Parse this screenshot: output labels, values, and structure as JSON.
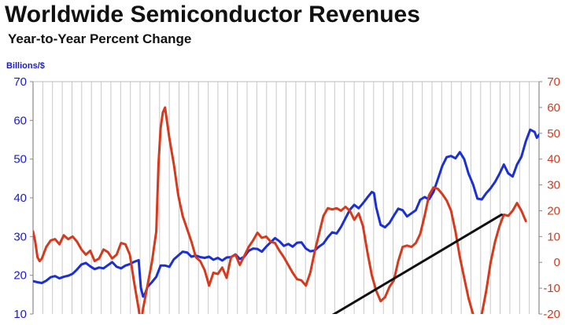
{
  "chart_data": {
    "type": "line",
    "title": "Worldwide Semiconductor Revenues",
    "subtitle": "Year-to-Year Percent Change",
    "ylabel": "Billions/$",
    "ylim": [
      10,
      70
    ],
    "y2lim": [
      -20,
      70
    ],
    "yticks": [
      "70",
      "60",
      "50",
      "40",
      "30",
      "20",
      "10"
    ],
    "y2ticks": [
      "70",
      "60",
      "50",
      "40",
      "30",
      "20",
      "10",
      "0",
      "-10",
      "-20"
    ],
    "grid": true,
    "series": [
      {
        "axis": "left",
        "color": "#1a2fd6",
        "values": [
          [
            0,
            18.5
          ],
          [
            2,
            18.2
          ],
          [
            4,
            18.0
          ],
          [
            6,
            18.6
          ],
          [
            8,
            19.5
          ],
          [
            10,
            19.8
          ],
          [
            12,
            19.2
          ],
          [
            14,
            19.6
          ],
          [
            16,
            19.9
          ],
          [
            18,
            20.4
          ],
          [
            20,
            21.5
          ],
          [
            22,
            22.8
          ],
          [
            24,
            23.2
          ],
          [
            26,
            22.3
          ],
          [
            28,
            21.6
          ],
          [
            30,
            22.0
          ],
          [
            32,
            21.8
          ],
          [
            34,
            22.6
          ],
          [
            36,
            23.4
          ],
          [
            38,
            22.2
          ],
          [
            40,
            21.8
          ],
          [
            42,
            22.5
          ],
          [
            44,
            22.9
          ],
          [
            46,
            23.5
          ],
          [
            48,
            23.9
          ],
          [
            49,
            16.8
          ],
          [
            50,
            14.5
          ],
          [
            51,
            15.4
          ],
          [
            52,
            17.0
          ],
          [
            54,
            18.2
          ],
          [
            56,
            19.6
          ],
          [
            58,
            22.5
          ],
          [
            60,
            22.5
          ],
          [
            62,
            22.2
          ],
          [
            64,
            24.1
          ],
          [
            66,
            25.1
          ],
          [
            68,
            26.1
          ],
          [
            70,
            25.9
          ],
          [
            72,
            24.8
          ],
          [
            74,
            25.1
          ],
          [
            76,
            24.7
          ],
          [
            78,
            24.5
          ],
          [
            80,
            24.8
          ],
          [
            82,
            24.0
          ],
          [
            84,
            24.5
          ],
          [
            86,
            23.8
          ],
          [
            88,
            24.6
          ],
          [
            90,
            24.7
          ],
          [
            92,
            25.4
          ],
          [
            94,
            24.2
          ],
          [
            96,
            24.8
          ],
          [
            98,
            26.3
          ],
          [
            100,
            26.9
          ],
          [
            102,
            26.8
          ],
          [
            104,
            26.1
          ],
          [
            106,
            27.4
          ],
          [
            108,
            28.5
          ],
          [
            110,
            29.6
          ],
          [
            112,
            28.8
          ],
          [
            114,
            27.6
          ],
          [
            116,
            28.1
          ],
          [
            118,
            27.4
          ],
          [
            120,
            28.4
          ],
          [
            122,
            28.5
          ],
          [
            124,
            26.9
          ],
          [
            126,
            26.2
          ],
          [
            128,
            26.4
          ],
          [
            130,
            27.4
          ],
          [
            132,
            28.2
          ],
          [
            134,
            29.8
          ],
          [
            136,
            31.1
          ],
          [
            138,
            30.8
          ],
          [
            140,
            32.5
          ],
          [
            142,
            34.7
          ],
          [
            144,
            36.9
          ],
          [
            146,
            38.2
          ],
          [
            148,
            37.3
          ],
          [
            150,
            38.6
          ],
          [
            152,
            40.1
          ],
          [
            154,
            41.5
          ],
          [
            155,
            41.2
          ],
          [
            156,
            37.5
          ],
          [
            158,
            33.0
          ],
          [
            160,
            32.4
          ],
          [
            162,
            33.5
          ],
          [
            164,
            35.4
          ],
          [
            166,
            37.2
          ],
          [
            168,
            36.8
          ],
          [
            170,
            35.2
          ],
          [
            172,
            36.0
          ],
          [
            174,
            36.8
          ],
          [
            176,
            39.5
          ],
          [
            178,
            40.2
          ],
          [
            180,
            39.6
          ],
          [
            182,
            41.5
          ],
          [
            184,
            44.8
          ],
          [
            186,
            48.2
          ],
          [
            188,
            50.5
          ],
          [
            190,
            50.8
          ],
          [
            192,
            50.2
          ],
          [
            194,
            51.8
          ],
          [
            196,
            50.0
          ],
          [
            198,
            46.2
          ],
          [
            200,
            43.5
          ],
          [
            202,
            39.8
          ],
          [
            204,
            39.6
          ],
          [
            206,
            41.2
          ],
          [
            208,
            42.5
          ],
          [
            210,
            44.1
          ],
          [
            212,
            46.2
          ],
          [
            214,
            48.6
          ],
          [
            216,
            46.3
          ],
          [
            218,
            45.5
          ],
          [
            220,
            48.6
          ],
          [
            222,
            50.6
          ],
          [
            224,
            54.6
          ],
          [
            226,
            57.6
          ],
          [
            228,
            57.0
          ],
          [
            229,
            55.5
          ],
          [
            230,
            56.3
          ]
        ]
      },
      {
        "axis": "right",
        "color": "#d6391c",
        "values": [
          [
            0,
            12.0
          ],
          [
            1,
            8.0
          ],
          [
            2,
            2.0
          ],
          [
            3,
            0.5
          ],
          [
            4,
            1.5
          ],
          [
            6,
            6.0
          ],
          [
            8,
            8.5
          ],
          [
            10,
            9.0
          ],
          [
            12,
            7.0
          ],
          [
            14,
            10.5
          ],
          [
            16,
            9.0
          ],
          [
            18,
            10.0
          ],
          [
            20,
            8.0
          ],
          [
            22,
            5.0
          ],
          [
            24,
            3.0
          ],
          [
            26,
            4.5
          ],
          [
            28,
            0.5
          ],
          [
            30,
            1.5
          ],
          [
            32,
            5.0
          ],
          [
            34,
            4.0
          ],
          [
            36,
            1.5
          ],
          [
            38,
            3.0
          ],
          [
            40,
            7.5
          ],
          [
            42,
            7.0
          ],
          [
            44,
            3.0
          ],
          [
            46,
            -8.0
          ],
          [
            48,
            -18.0
          ],
          [
            49,
            -24.0
          ],
          [
            50,
            -18.0
          ],
          [
            52,
            -9.0
          ],
          [
            54,
            0.0
          ],
          [
            56,
            12.0
          ],
          [
            57,
            38.0
          ],
          [
            58,
            52.0
          ],
          [
            59,
            58.0
          ],
          [
            60,
            60.0
          ],
          [
            62,
            48.0
          ],
          [
            64,
            38.0
          ],
          [
            66,
            26.0
          ],
          [
            68,
            18.0
          ],
          [
            70,
            13.0
          ],
          [
            72,
            8.0
          ],
          [
            74,
            2.0
          ],
          [
            76,
            0.5
          ],
          [
            78,
            -3.0
          ],
          [
            80,
            -9.0
          ],
          [
            82,
            -4.0
          ],
          [
            84,
            -4.5
          ],
          [
            86,
            -2.0
          ],
          [
            88,
            -6.0
          ],
          [
            90,
            2.0
          ],
          [
            92,
            3.0
          ],
          [
            94,
            -1.0
          ],
          [
            96,
            2.5
          ],
          [
            98,
            6.0
          ],
          [
            100,
            8.5
          ],
          [
            102,
            11.5
          ],
          [
            104,
            9.5
          ],
          [
            106,
            10.0
          ],
          [
            108,
            8.0
          ],
          [
            110,
            7.5
          ],
          [
            112,
            4.5
          ],
          [
            114,
            2.0
          ],
          [
            116,
            -1.0
          ],
          [
            118,
            -4.0
          ],
          [
            120,
            -6.5
          ],
          [
            122,
            -7.0
          ],
          [
            124,
            -9.0
          ],
          [
            126,
            -4.0
          ],
          [
            128,
            4.0
          ],
          [
            130,
            11.0
          ],
          [
            132,
            18.0
          ],
          [
            134,
            21.0
          ],
          [
            136,
            20.5
          ],
          [
            138,
            21.0
          ],
          [
            140,
            20.0
          ],
          [
            142,
            21.5
          ],
          [
            144,
            20.0
          ],
          [
            146,
            16.5
          ],
          [
            148,
            19.0
          ],
          [
            150,
            14.0
          ],
          [
            152,
            4.0
          ],
          [
            154,
            -5.0
          ],
          [
            156,
            -11.0
          ],
          [
            158,
            -15.0
          ],
          [
            160,
            -13.5
          ],
          [
            162,
            -9.5
          ],
          [
            164,
            -7.0
          ],
          [
            166,
            0.5
          ],
          [
            168,
            6.0
          ],
          [
            170,
            6.5
          ],
          [
            172,
            6.0
          ],
          [
            174,
            7.5
          ],
          [
            176,
            11.0
          ],
          [
            178,
            18.0
          ],
          [
            180,
            26.0
          ],
          [
            182,
            29.0
          ],
          [
            184,
            28.5
          ],
          [
            186,
            26.5
          ],
          [
            188,
            24.0
          ],
          [
            190,
            20.0
          ],
          [
            192,
            12.0
          ],
          [
            194,
            2.0
          ],
          [
            196,
            -6.0
          ],
          [
            198,
            -14.0
          ],
          [
            200,
            -20.0
          ],
          [
            201,
            -22.0
          ],
          [
            202,
            -22.5
          ],
          [
            204,
            -20.0
          ],
          [
            206,
            -11.0
          ],
          [
            208,
            0.0
          ],
          [
            210,
            8.0
          ],
          [
            212,
            14.0
          ],
          [
            214,
            18.5
          ],
          [
            216,
            18.0
          ],
          [
            218,
            20.0
          ],
          [
            220,
            23.0
          ],
          [
            222,
            20.0
          ],
          [
            224,
            16.0
          ]
        ]
      },
      {
        "axis": "right",
        "color": "#111111",
        "values": [
          [
            129,
            -24.0
          ],
          [
            213,
            18.5
          ]
        ]
      }
    ]
  }
}
